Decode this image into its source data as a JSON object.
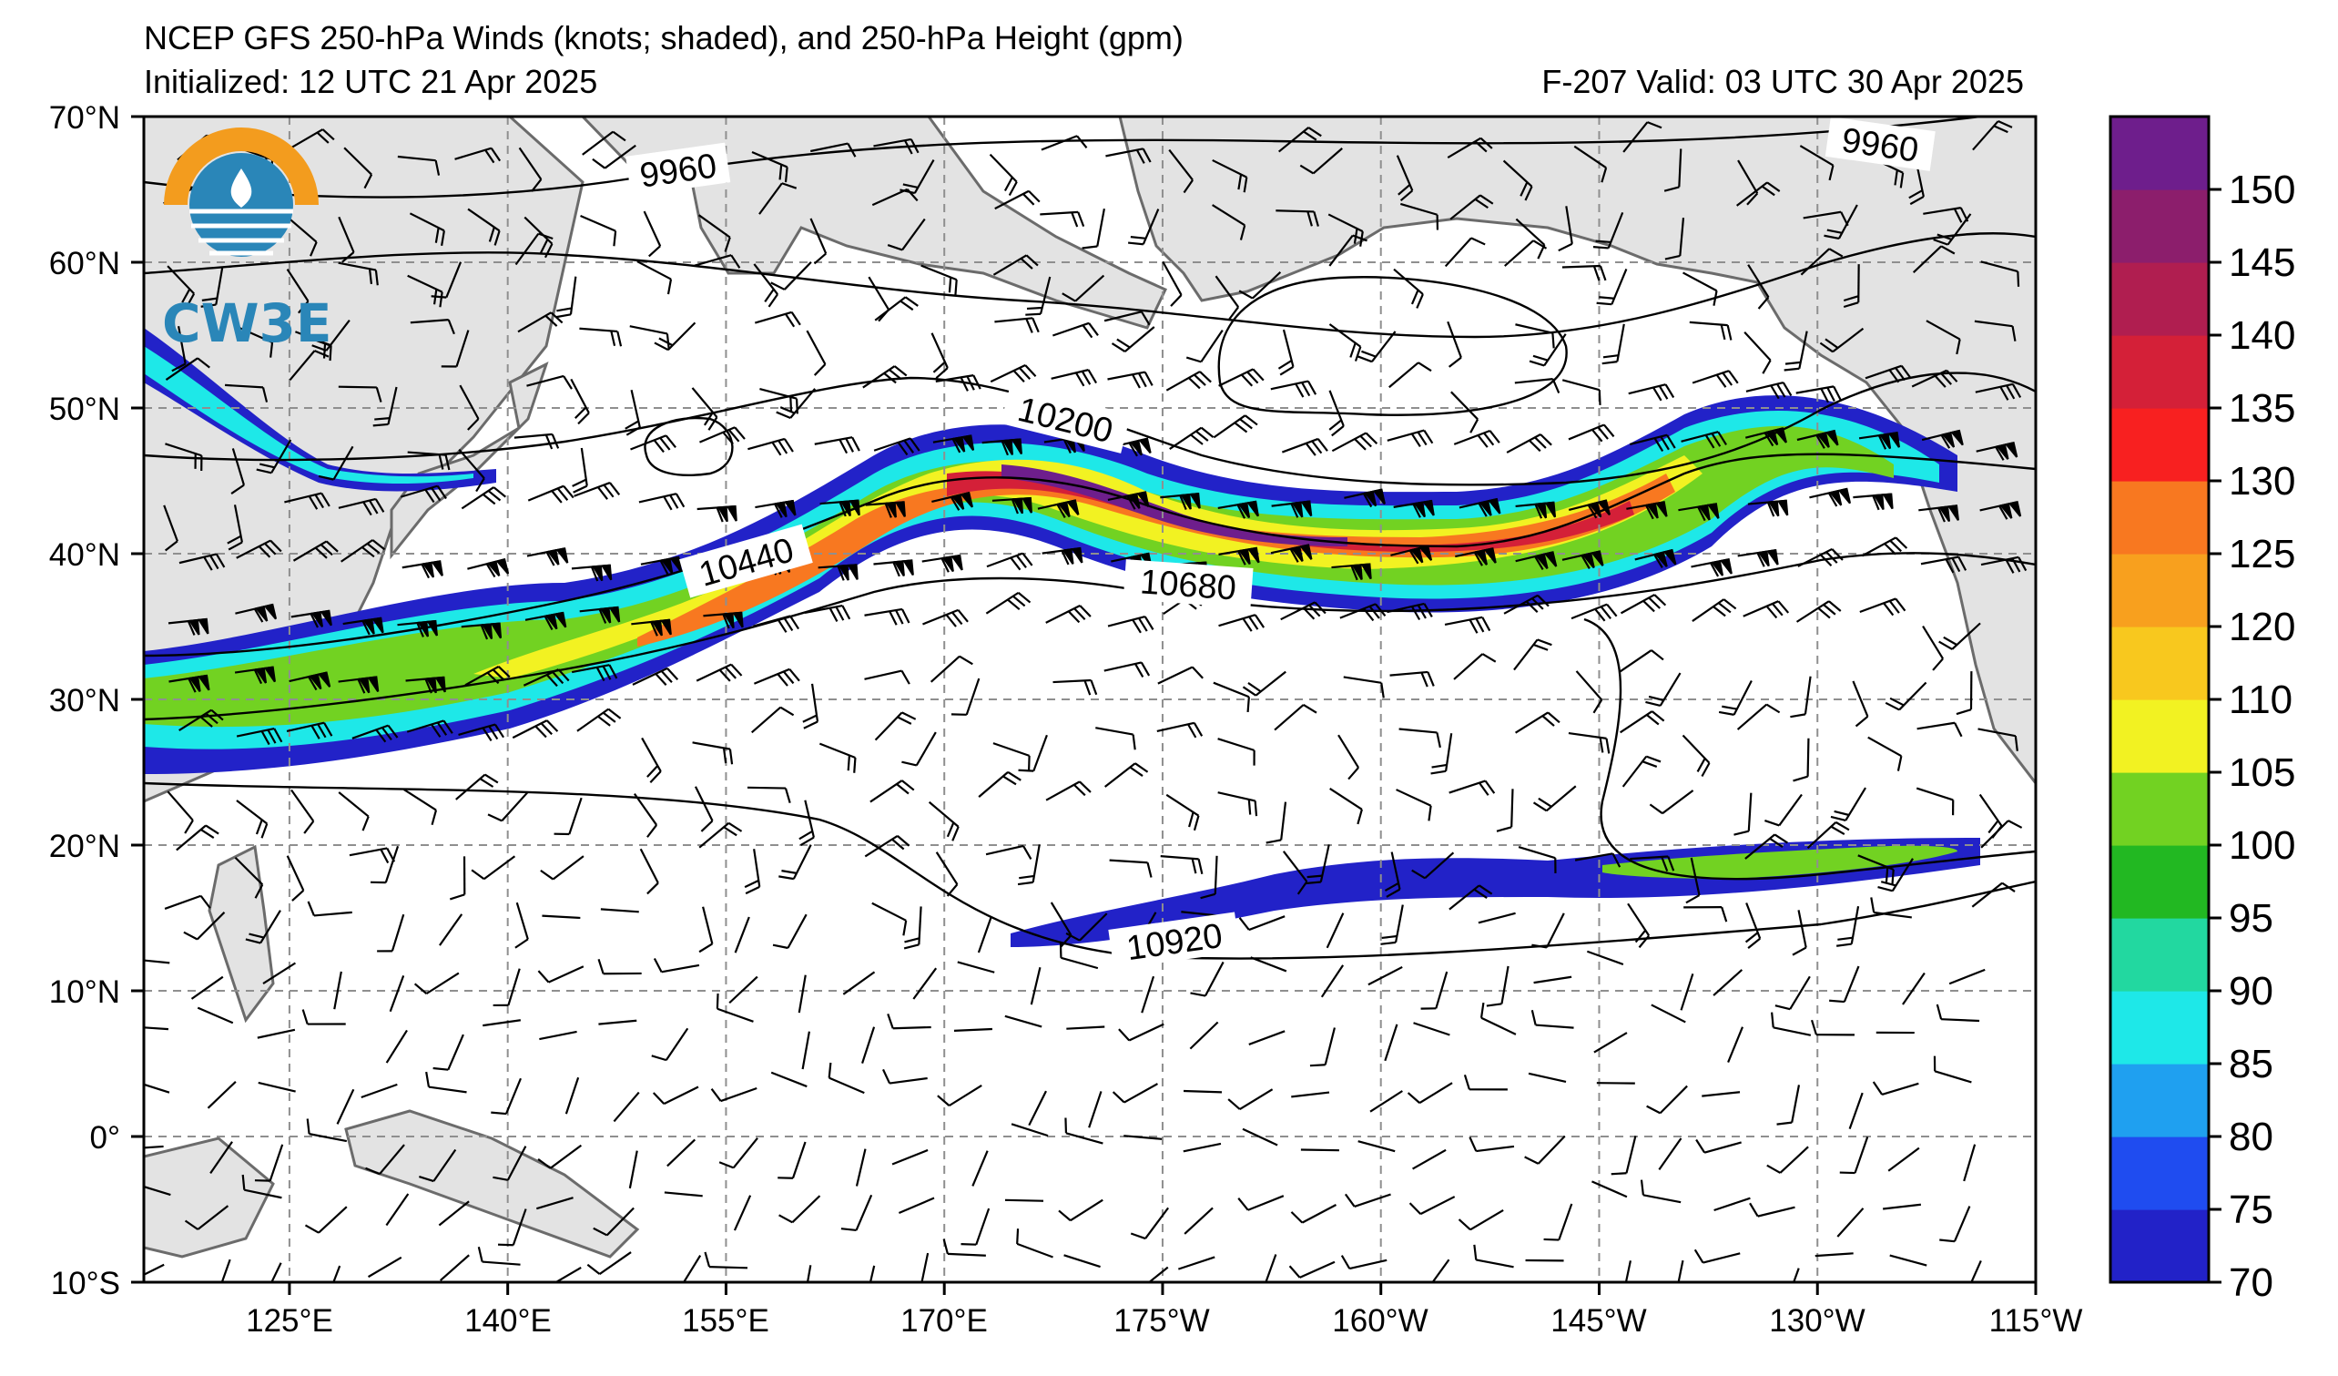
{
  "header": {
    "title": "NCEP GFS 250-hPa Winds (knots; shaded), and 250-hPa Height (gpm)",
    "initialized": "Initialized: 12 UTC 21 Apr 2025",
    "valid": "F-207  Valid: 03 UTC 30 Apr 2025"
  },
  "logo": {
    "text": "CW3E",
    "colors": {
      "ring": "#f39c1e",
      "water": "#2a86b8"
    }
  },
  "map": {
    "lat_ticks": [
      "70°N",
      "60°N",
      "50°N",
      "40°N",
      "30°N",
      "20°N",
      "10°N",
      "0°",
      "10°S"
    ],
    "lon_ticks": [
      "125°E",
      "140°E",
      "155°E",
      "170°E",
      "175°W",
      "160°W",
      "145°W",
      "130°W",
      "115°W"
    ],
    "height_contour_labels": [
      "9960",
      "9960",
      "10200",
      "10440",
      "10680",
      "10920"
    ],
    "land_color": "#e3e3e3",
    "coast_color": "#6b6b6b"
  },
  "colorbar": {
    "ticks": [
      "70",
      "75",
      "80",
      "85",
      "90",
      "95",
      "100",
      "105",
      "110",
      "120",
      "125",
      "130",
      "135",
      "140",
      "145",
      "150"
    ],
    "colors": [
      "#2222c8",
      "#1f4cf0",
      "#1fa0f0",
      "#1ee8e8",
      "#22d8a0",
      "#22b822",
      "#72d222",
      "#f2f222",
      "#f8c81e",
      "#f8a01e",
      "#f87820",
      "#f82020",
      "#d42038",
      "#b01e50",
      "#8c1e6c",
      "#6e1e8c"
    ]
  }
}
